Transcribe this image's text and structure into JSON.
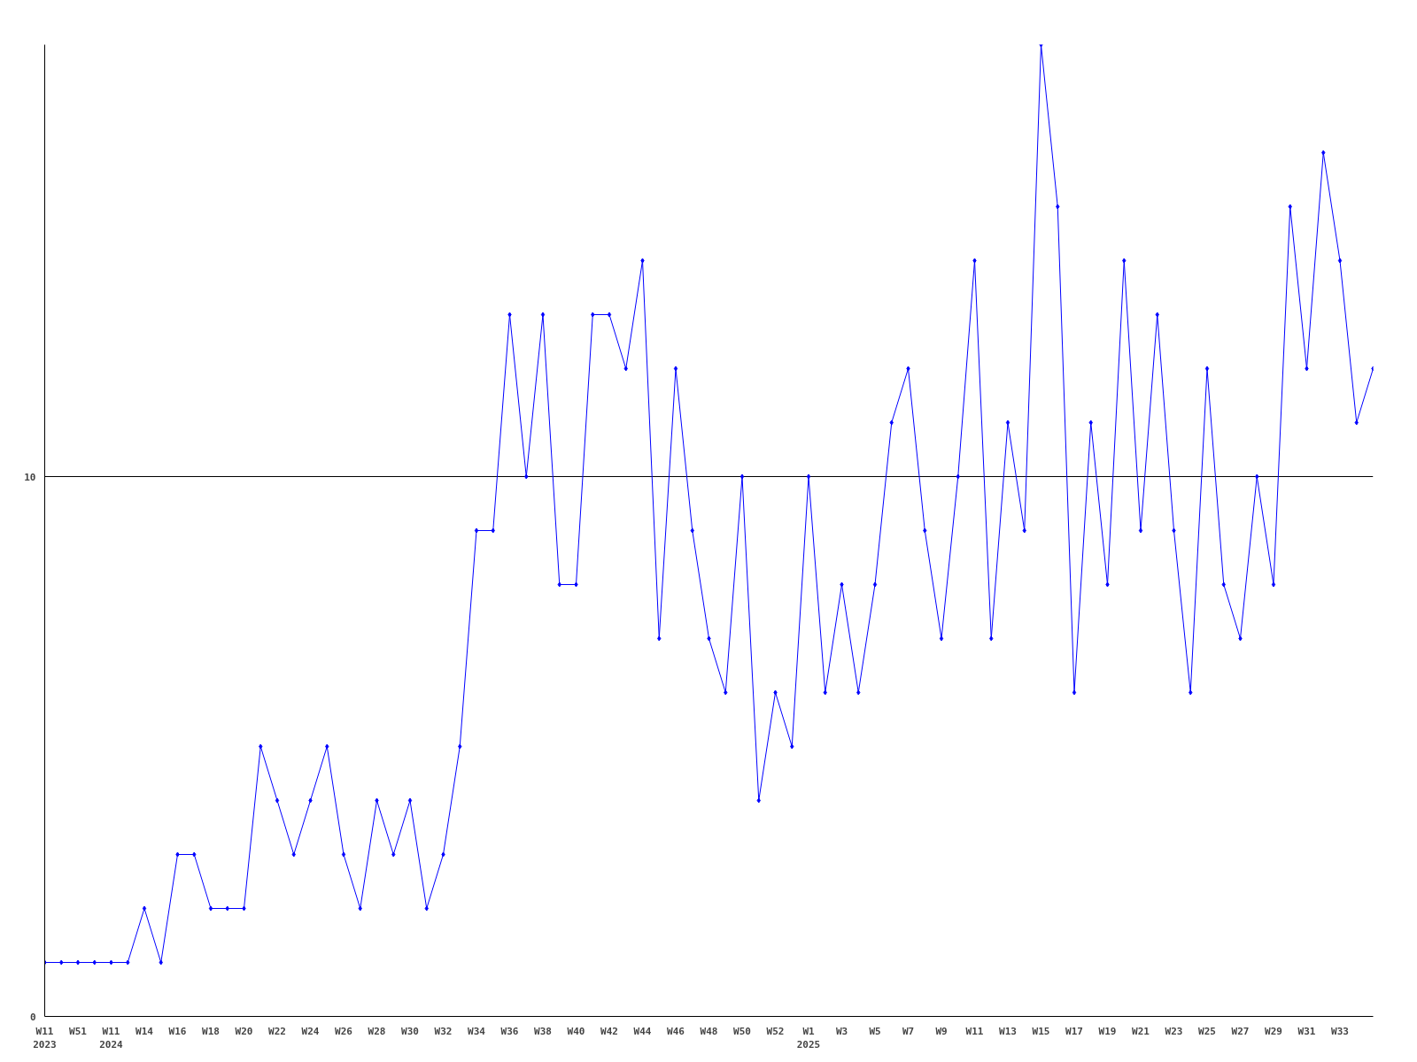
{
  "chart_data": {
    "type": "line",
    "categories": [
      "W11\n2023",
      null,
      "W51",
      null,
      "W11\n2024",
      null,
      "W14",
      null,
      "W16",
      null,
      "W18",
      null,
      "W20",
      null,
      "W22",
      null,
      "W24",
      null,
      "W26",
      null,
      "W28",
      null,
      "W30",
      null,
      "W32",
      null,
      "W34",
      null,
      "W36",
      null,
      "W38",
      null,
      "W40",
      null,
      "W42",
      null,
      "W44",
      null,
      "W46",
      null,
      "W48",
      null,
      "W50",
      null,
      "W52",
      null,
      "W1\n2025",
      null,
      "W3",
      null,
      "W5",
      null,
      "W7",
      null,
      "W9",
      null,
      "W11",
      null,
      "W13",
      null,
      "W15",
      null,
      "W17",
      null,
      "W19",
      null,
      "W21",
      null,
      "W23",
      null,
      "W25",
      null,
      "W27",
      null,
      "W29",
      null,
      "W31",
      null,
      "W33",
      null,
      null
    ],
    "series": [
      {
        "color": "#0000ff",
        "values": [
          1,
          1,
          1,
          1,
          1,
          1,
          2,
          1,
          3,
          3,
          2,
          2,
          2,
          5,
          4,
          3,
          4,
          5,
          3,
          2,
          4,
          3,
          4,
          2,
          3,
          5,
          9,
          9,
          13,
          10,
          13,
          8,
          8,
          13,
          13,
          12,
          14,
          7,
          12,
          9,
          7,
          6,
          10,
          4,
          6,
          5,
          10,
          6,
          8,
          6,
          8,
          11,
          12,
          9,
          7,
          10,
          14,
          7,
          11,
          9,
          18,
          15,
          6,
          11,
          8,
          14,
          9,
          13,
          9,
          6,
          12,
          8,
          7,
          10,
          8,
          15,
          12,
          16,
          14,
          11,
          12
        ]
      }
    ],
    "ylim": [
      0,
      18
    ],
    "yticks": [
      0,
      10
    ],
    "grid": "y",
    "marker": "diamond",
    "line_style": "solid"
  }
}
